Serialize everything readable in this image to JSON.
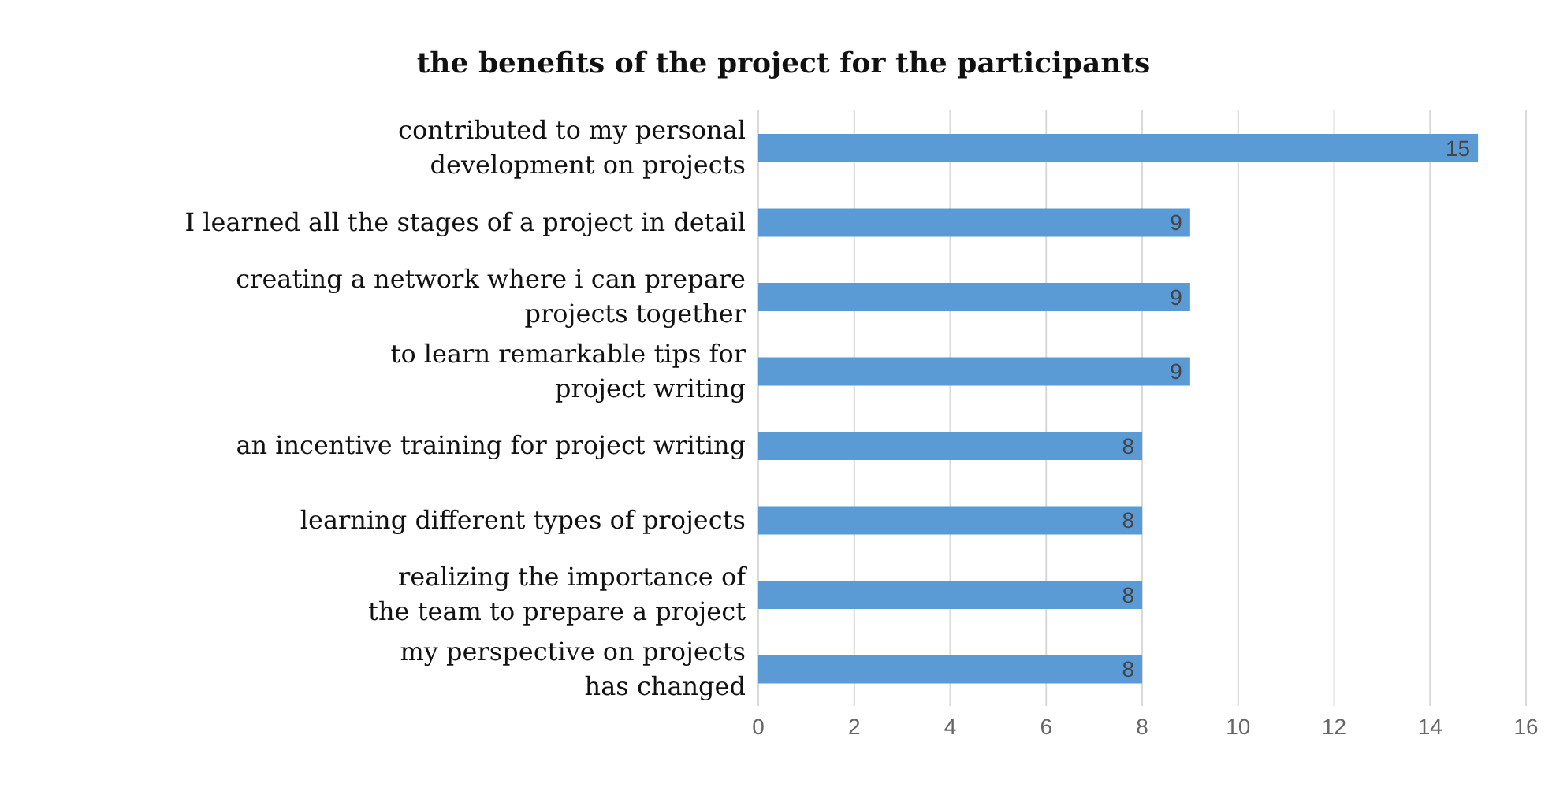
{
  "chart_data": {
    "type": "bar",
    "orientation": "horizontal",
    "title": "the benefits of the project for the participants",
    "categories": [
      "contributed to my personal\ndevelopment on projects",
      "I learned all the stages of a project in detail",
      "creating a network where i can prepare\nprojects together",
      "to learn remarkable tips for\nproject writing",
      "an incentive training for project writing",
      "learning different types of projects",
      "realizing the importance of\nthe team to prepare a project",
      "my perspective on projects\nhas changed"
    ],
    "values": [
      15,
      9,
      9,
      9,
      8,
      8,
      8,
      8
    ],
    "color": "#5b9bd5",
    "xlim": [
      0,
      16
    ],
    "xticks": [
      0,
      2,
      4,
      6,
      8,
      10,
      12,
      14,
      16
    ],
    "grid": "x",
    "legend": false,
    "data_labels": true
  }
}
